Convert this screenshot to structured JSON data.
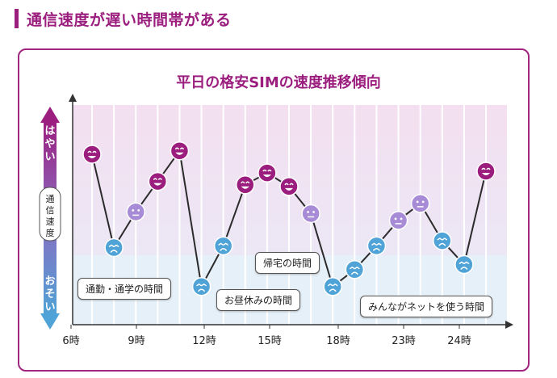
{
  "section": {
    "title": "通信速度が遅い時間帯がある"
  },
  "colors": {
    "brand": "#9b1e7e",
    "fast": "#9b1e7e",
    "mid": "#a78bd6",
    "slow": "#4fa3d6"
  },
  "chart_data": {
    "type": "line",
    "title": "平日の格安SIMの速度推移傾向",
    "ylabel": "通信速度",
    "y_top_label": "はやい",
    "y_bottom_label": "おそい",
    "x_ticks": [
      "6時",
      "9時",
      "12時",
      "15時",
      "18時",
      "23時",
      "24時"
    ],
    "ylim": [
      0,
      10
    ],
    "series": [
      {
        "values": [
          9.0,
          3.5,
          5.6,
          7.4,
          9.2,
          1.2,
          3.6,
          7.2,
          7.9,
          7.1,
          5.5,
          1.2,
          2.2,
          3.6,
          5.1,
          6.1,
          3.9,
          2.5,
          8.0
        ],
        "moods": [
          "fast",
          "slow",
          "mid",
          "fast",
          "fast",
          "slow",
          "slow",
          "fast",
          "fast",
          "fast",
          "mid",
          "slow",
          "slow",
          "slow",
          "mid",
          "mid",
          "slow",
          "slow",
          "fast"
        ]
      }
    ],
    "annotations": [
      {
        "text": "通勤・通学の時間"
      },
      {
        "text": "お昼休みの時間"
      },
      {
        "text": "帰宅の時間"
      },
      {
        "text": "みんながネットを使う時間"
      }
    ]
  }
}
